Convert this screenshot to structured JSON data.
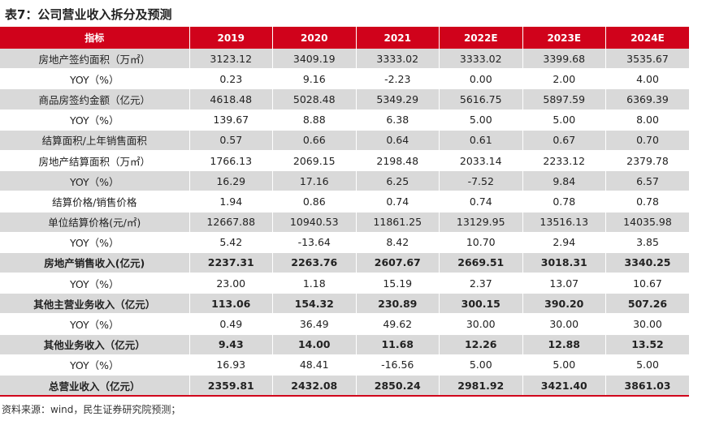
{
  "title": "表7：公司营业收入拆分及预测",
  "table": {
    "headers": [
      "指标",
      "2019",
      "2020",
      "2021",
      "2022E",
      "2023E",
      "2024E"
    ],
    "rows": [
      {
        "label": "房地产签约面积（万㎡）",
        "values": [
          "3123.12",
          "3409.19",
          "3333.02",
          "3333.02",
          "3399.68",
          "3535.67"
        ],
        "bold": false
      },
      {
        "label": "YOY（%）",
        "values": [
          "0.23",
          "9.16",
          "-2.23",
          "0.00",
          "2.00",
          "4.00"
        ],
        "bold": false
      },
      {
        "label": "商品房签约金额（亿元）",
        "values": [
          "4618.48",
          "5028.48",
          "5349.29",
          "5616.75",
          "5897.59",
          "6369.39"
        ],
        "bold": false
      },
      {
        "label": "YOY（%）",
        "values": [
          "139.67",
          "8.88",
          "6.38",
          "5.00",
          "5.00",
          "8.00"
        ],
        "bold": false
      },
      {
        "label": "结算面积/上年销售面积",
        "values": [
          "0.57",
          "0.66",
          "0.64",
          "0.61",
          "0.67",
          "0.70"
        ],
        "bold": false
      },
      {
        "label": "房地产结算面积（万㎡）",
        "values": [
          "1766.13",
          "2069.15",
          "2198.48",
          "2033.14",
          "2233.12",
          "2379.78"
        ],
        "bold": false
      },
      {
        "label": "YOY（%）",
        "values": [
          "16.29",
          "17.16",
          "6.25",
          "-7.52",
          "9.84",
          "6.57"
        ],
        "bold": false
      },
      {
        "label": "结算价格/销售价格",
        "values": [
          "1.94",
          "0.86",
          "0.74",
          "0.74",
          "0.78",
          "0.78"
        ],
        "bold": false
      },
      {
        "label": "单位结算价格(元/㎡)",
        "values": [
          "12667.88",
          "10940.53",
          "11861.25",
          "13129.95",
          "13516.13",
          "14035.98"
        ],
        "bold": false
      },
      {
        "label": "YOY（%）",
        "values": [
          "5.42",
          "-13.64",
          "8.42",
          "10.70",
          "2.94",
          "3.85"
        ],
        "bold": false
      },
      {
        "label": "房地产销售收入(亿元)",
        "values": [
          "2237.31",
          "2263.76",
          "2607.67",
          "2669.51",
          "3018.31",
          "3340.25"
        ],
        "bold": true
      },
      {
        "label": "YOY（%）",
        "values": [
          "23.00",
          "1.18",
          "15.19",
          "2.37",
          "13.07",
          "10.67"
        ],
        "bold": false
      },
      {
        "label": "其他主营业务收入（亿元）",
        "values": [
          "113.06",
          "154.32",
          "230.89",
          "300.15",
          "390.20",
          "507.26"
        ],
        "bold": true
      },
      {
        "label": "YOY（%）",
        "values": [
          "0.49",
          "36.49",
          "49.62",
          "30.00",
          "30.00",
          "30.00"
        ],
        "bold": false
      },
      {
        "label": "其他业务收入（亿元）",
        "values": [
          "9.43",
          "14.00",
          "11.68",
          "12.26",
          "12.88",
          "13.52"
        ],
        "bold": true
      },
      {
        "label": "YOY（%）",
        "values": [
          "16.93",
          "48.41",
          "-16.56",
          "5.00",
          "5.00",
          "5.00"
        ],
        "bold": false
      },
      {
        "label": "总营业收入（亿元）",
        "values": [
          "2359.81",
          "2432.08",
          "2850.24",
          "2981.92",
          "3421.40",
          "3861.03"
        ],
        "bold": true
      }
    ]
  },
  "source": "资料来源：wind，民生证券研究院预测；",
  "colors": {
    "header_bg": "#d0021b",
    "stripe": "#d9d9d9"
  }
}
